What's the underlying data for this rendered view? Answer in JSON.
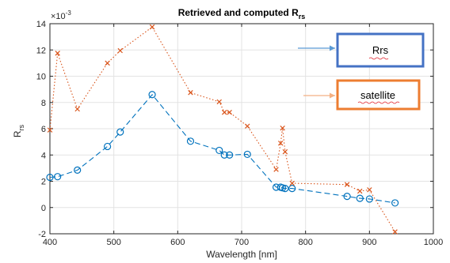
{
  "chart_data": {
    "type": "line",
    "title": "Retrieved and computed R",
    "title_sub": "rs",
    "xlabel": "Wavelength [nm]",
    "ylabel": "R",
    "ylabel_sub": "rs",
    "exponent_label": "×10",
    "exponent_power": "-3",
    "xlim": [
      400,
      1000
    ],
    "ylim": [
      -2,
      14
    ],
    "xticks": [
      "400",
      "500",
      "600",
      "700",
      "800",
      "900",
      "1000"
    ],
    "yticks": [
      "-2",
      "0",
      "2",
      "4",
      "6",
      "8",
      "10",
      "12",
      "14"
    ],
    "grid": true,
    "series": [
      {
        "name": "Rrs",
        "color": "#0072BD",
        "style": "dashed",
        "marker": "circle",
        "x": [
          400,
          412,
          443,
          490,
          510,
          560,
          620,
          665,
          673,
          681,
          709,
          754,
          761,
          764,
          768,
          779,
          865,
          885,
          900,
          940
        ],
        "y": [
          2.3,
          2.35,
          2.85,
          4.65,
          5.75,
          8.6,
          5.05,
          4.35,
          4.0,
          4.0,
          4.05,
          1.55,
          1.55,
          1.5,
          1.45,
          1.45,
          0.85,
          0.7,
          0.65,
          0.35
        ]
      },
      {
        "name": "satellite",
        "color": "#D95319",
        "style": "dotted",
        "marker": "x",
        "x": [
          400,
          412,
          443,
          490,
          510,
          560,
          620,
          665,
          673,
          681,
          709,
          754,
          761,
          764,
          768,
          779,
          865,
          885,
          900,
          940
        ],
        "y": [
          5.9,
          11.75,
          7.5,
          11.0,
          11.95,
          13.75,
          8.75,
          8.05,
          7.25,
          7.25,
          6.2,
          2.9,
          4.9,
          6.05,
          4.25,
          1.85,
          1.75,
          1.25,
          1.35,
          -1.85
        ]
      }
    ]
  }
}
